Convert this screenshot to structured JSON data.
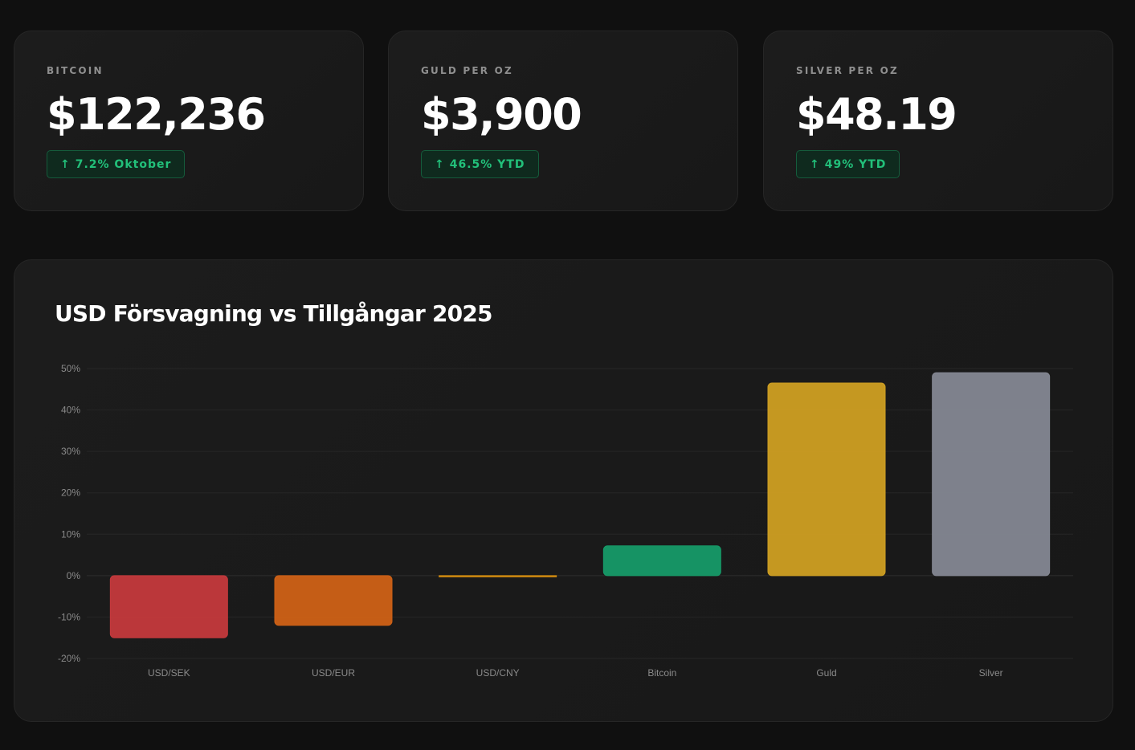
{
  "cards": [
    {
      "label": "BITCOIN",
      "value": "$122,236",
      "badge": "7.2% Oktober"
    },
    {
      "label": "GULD PER OZ",
      "value": "$3,900",
      "badge": "46.5% YTD"
    },
    {
      "label": "SILVER PER OZ",
      "value": "$48.19",
      "badge": "49% YTD"
    }
  ],
  "badge_icon": "arrow-up-icon",
  "colors": {
    "positive": "#22c07a",
    "background": "#101010"
  },
  "chart_data": {
    "type": "bar",
    "title": "USD Försvagning vs Tillgångar 2025",
    "xlabel": "",
    "ylabel": "",
    "categories": [
      "USD/SEK",
      "USD/EUR",
      "USD/CNY",
      "Bitcoin",
      "Guld",
      "Silver"
    ],
    "values": [
      -15,
      -12,
      -0.3,
      7.2,
      46.5,
      49
    ],
    "colors": [
      "#c4393c",
      "#cf6116",
      "#cf8a10",
      "#169a68",
      "#cf9f22",
      "#848792"
    ],
    "ylim": [
      -20,
      50
    ],
    "yticks": [
      50,
      40,
      30,
      20,
      10,
      0,
      -10,
      -20
    ],
    "ytick_labels": [
      "50%",
      "40%",
      "30%",
      "20%",
      "10%",
      "0%",
      "-10%",
      "-20%"
    ],
    "grid": true,
    "legend": "none"
  }
}
